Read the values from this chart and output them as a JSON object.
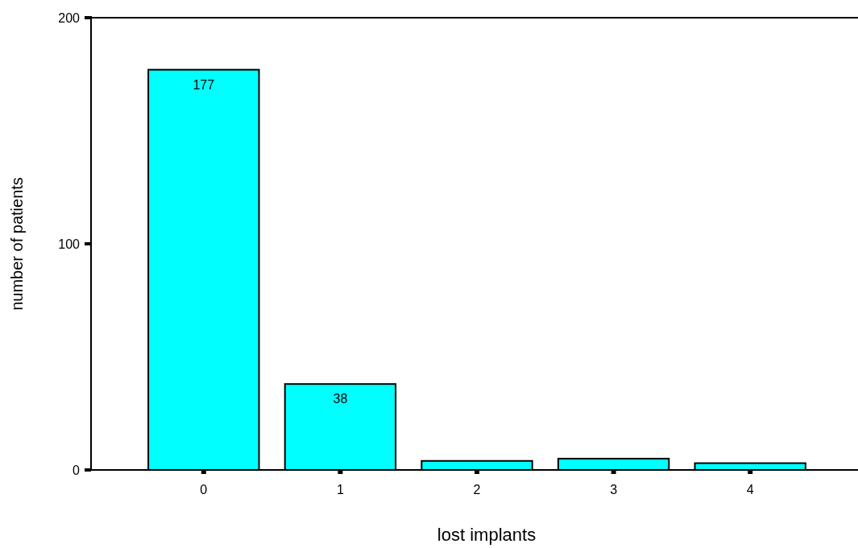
{
  "chart_data": {
    "type": "bar",
    "xlabel": "lost implants",
    "ylabel": "number of patients",
    "categories": [
      "0",
      "1",
      "2",
      "3",
      "4"
    ],
    "values": [
      177,
      38,
      4,
      5,
      3
    ],
    "value_labels": [
      "177",
      "38",
      null,
      null,
      null
    ],
    "color": "#00ffff",
    "ylim": [
      0,
      200
    ],
    "yticks": [
      0,
      100,
      200
    ],
    "grid": false
  }
}
